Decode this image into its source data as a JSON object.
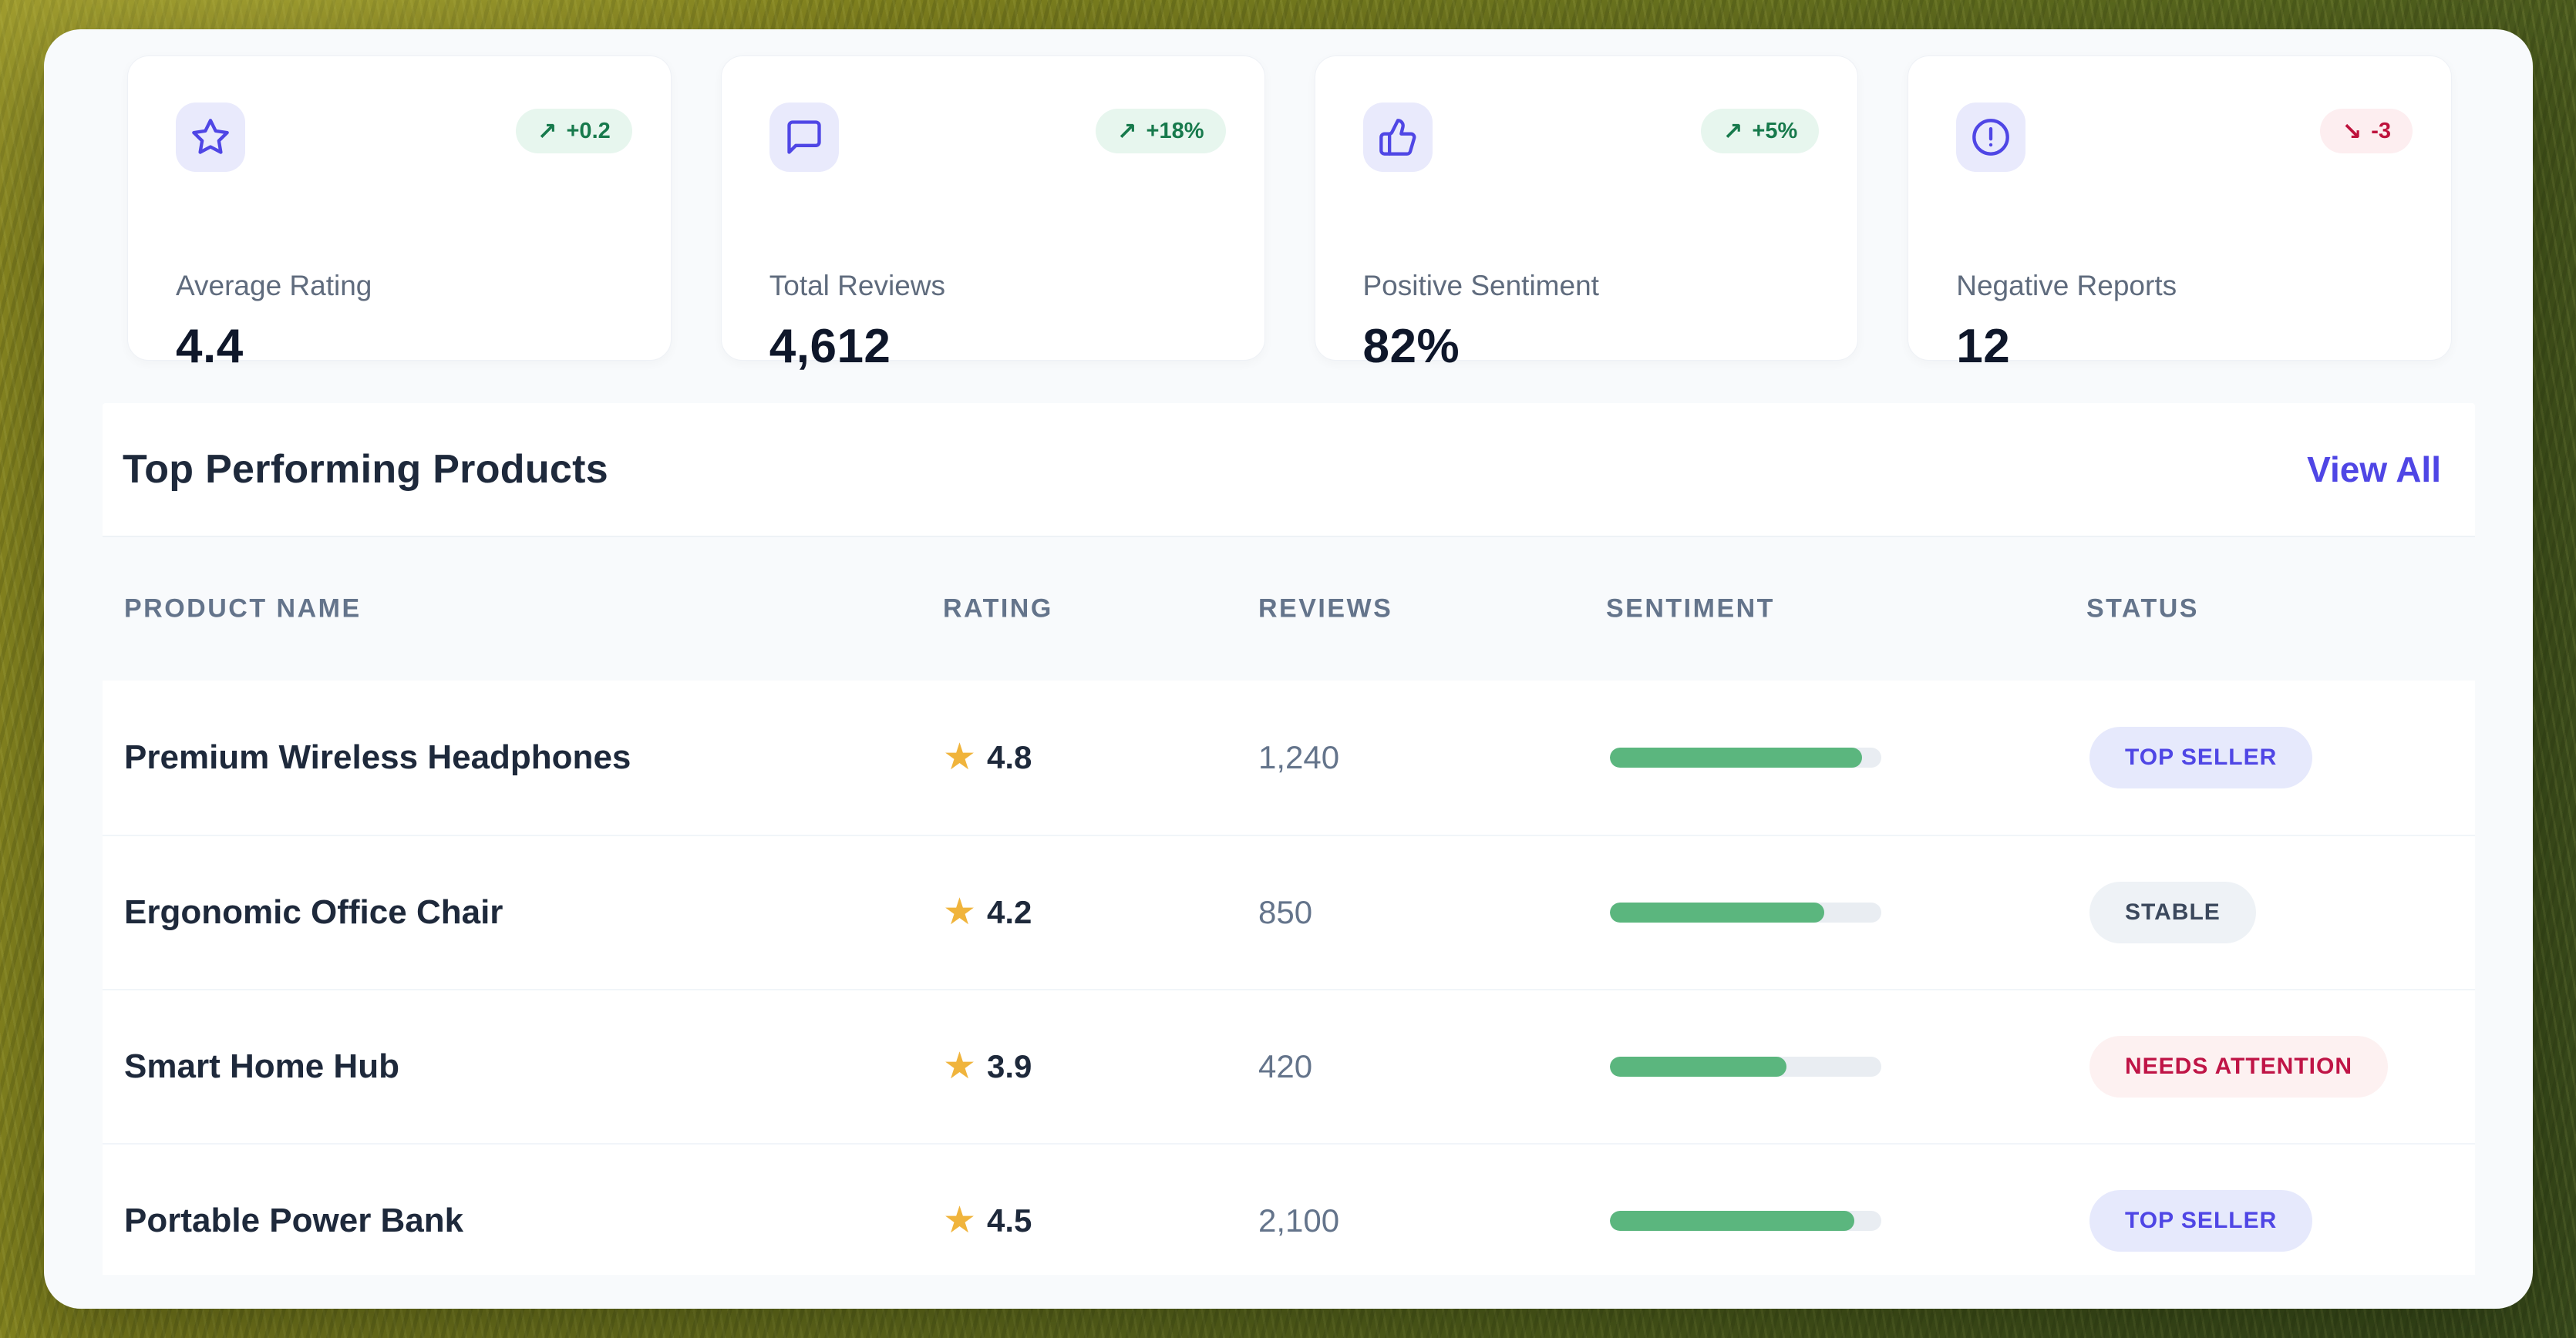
{
  "colors": {
    "accent_indigo": "#4f46e5",
    "icon_tile_bg": "#e9eafc",
    "positive_green_text": "#177a4c",
    "positive_green_bg": "#e7f6ee",
    "negative_red_text": "#be123c",
    "negative_red_bg": "#fdeef0",
    "bar_fill_green": "#5bb67e",
    "star_gold": "#f0b43c",
    "panel_bg": "#f8fafc"
  },
  "icons": {
    "star": "★",
    "trend_up": "↗",
    "trend_down": "↘"
  },
  "stats": [
    {
      "label": "Average Rating",
      "value": "4.4",
      "trend": "+0.2",
      "direction": "up",
      "icon": "star-icon"
    },
    {
      "label": "Total Reviews",
      "value": "4,612",
      "trend": "+18%",
      "direction": "up",
      "icon": "message-square-icon"
    },
    {
      "label": "Positive Sentiment",
      "value": "82%",
      "trend": "+5%",
      "direction": "up",
      "icon": "thumbs-up-icon"
    },
    {
      "label": "Negative Reports",
      "value": "12",
      "trend": "-3",
      "direction": "down",
      "icon": "alert-circle-icon"
    }
  ],
  "section": {
    "title": "Top Performing Products",
    "view_all": "View All"
  },
  "table": {
    "headers": [
      "PRODUCT NAME",
      "RATING",
      "REVIEWS",
      "SENTIMENT",
      "STATUS"
    ],
    "rows": [
      {
        "product": "Premium Wireless Headphones",
        "rating": "4.8",
        "reviews": "1,240",
        "sentiment_pct": 93,
        "status": "TOP SELLER"
      },
      {
        "product": "Ergonomic Office Chair",
        "rating": "4.2",
        "reviews": "850",
        "sentiment_pct": 79,
        "status": "STABLE"
      },
      {
        "product": "Smart Home Hub",
        "rating": "3.9",
        "reviews": "420",
        "sentiment_pct": 65,
        "status": "NEEDS ATTENTION"
      },
      {
        "product": "Portable Power Bank",
        "rating": "4.5",
        "reviews": "2,100",
        "sentiment_pct": 90,
        "status": "TOP SELLER"
      }
    ]
  }
}
